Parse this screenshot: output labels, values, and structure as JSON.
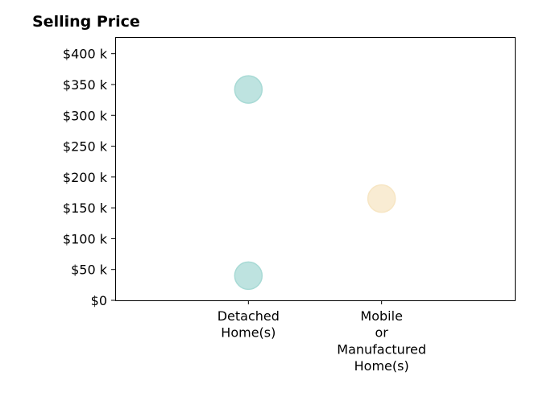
{
  "chart_data": {
    "type": "scatter",
    "title": "Selling Price",
    "xlabel": "",
    "ylabel": "",
    "categories": [
      "Detached Home(s)",
      "Mobile or Manufactured Home(s)"
    ],
    "category_label_lines": [
      [
        "Detached",
        "Home(s)"
      ],
      [
        "Mobile",
        "or",
        "Manufactured",
        "Home(s)"
      ]
    ],
    "y_ticks": [
      0,
      50000,
      100000,
      150000,
      200000,
      250000,
      300000,
      350000,
      400000
    ],
    "y_tick_labels": [
      "$0",
      "$50 k",
      "$100 k",
      "$150 k",
      "$200 k",
      "$250 k",
      "$300 k",
      "$350 k",
      "$400 k"
    ],
    "ylim": [
      0,
      427000
    ],
    "grid": false,
    "legend": "none",
    "series": [
      {
        "category": "Detached Home(s)",
        "color": "#a8dad5",
        "values": [
          342000,
          40000
        ]
      },
      {
        "category": "Mobile or Manufactured Home(s)",
        "color": "#f7e6c4",
        "values": [
          165000
        ]
      }
    ]
  }
}
